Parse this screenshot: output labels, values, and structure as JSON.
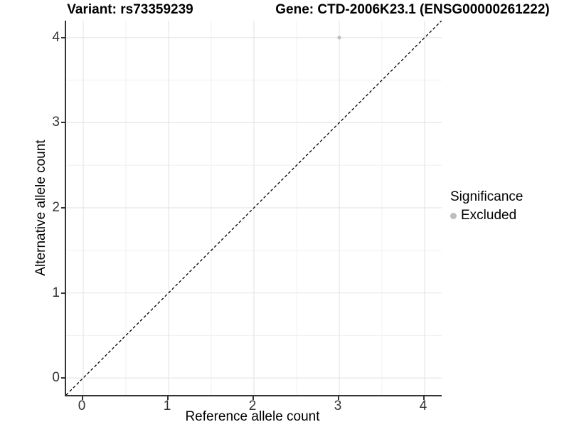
{
  "titles": {
    "variant": "Variant: rs73359239",
    "gene": "Gene: CTD-2006K23.1 (ENSG00000261222)"
  },
  "chart_data": {
    "type": "scatter",
    "title_left": "Variant: rs73359239",
    "title_right": "Gene: CTD-2006K23.1 (ENSG00000261222)",
    "xlabel": "Reference allele count",
    "ylabel": "Alternative allele count",
    "xlim": [
      -0.2,
      4.2
    ],
    "ylim": [
      -0.2,
      4.2
    ],
    "x_ticks": [
      0,
      1,
      2,
      3,
      4
    ],
    "y_ticks": [
      0,
      1,
      2,
      3,
      4
    ],
    "x_minor_ticks": [
      0.5,
      1.5,
      2.5,
      3.5
    ],
    "y_minor_ticks": [
      0.5,
      1.5,
      2.5,
      3.5
    ],
    "grid": "major and minor gridlines on, light grey, white background",
    "series": [
      {
        "name": "Excluded",
        "color": "#bdbdbd",
        "points": [
          {
            "x": 3,
            "y": 4
          }
        ]
      }
    ],
    "reference_line": {
      "type": "identity y=x",
      "style": "dashed",
      "color": "#000000",
      "from": {
        "x": -0.2,
        "y": -0.2
      },
      "to": {
        "x": 4.2,
        "y": 4.2
      }
    },
    "legend": {
      "position": "right",
      "title": "Significance",
      "items": [
        {
          "label": "Excluded",
          "color": "#bdbdbd"
        }
      ]
    }
  },
  "colors": {
    "background": "#ffffff",
    "axis_line": "#333333",
    "tick_text": "#333333",
    "grid_major": "#e5e5e5",
    "grid_minor": "#f0f0f0",
    "point": "#bdbdbd",
    "reference_line": "#000000"
  }
}
